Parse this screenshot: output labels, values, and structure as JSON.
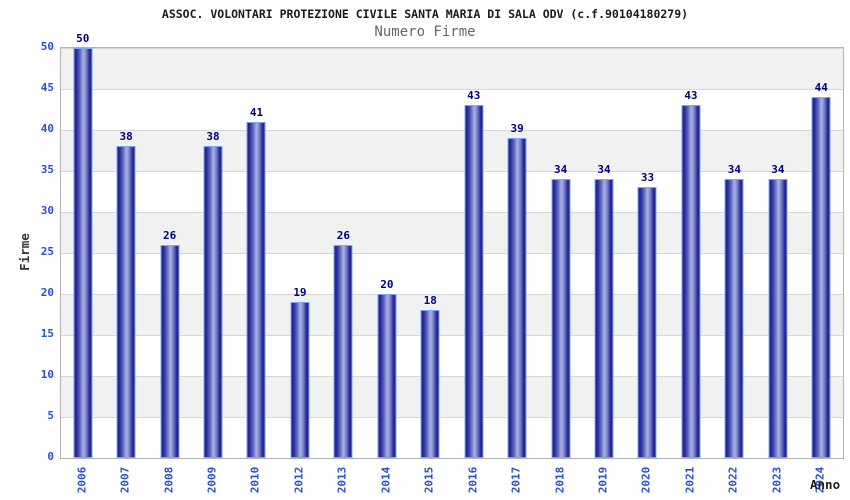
{
  "chart_data": {
    "type": "bar",
    "title": "ASSOC. VOLONTARI PROTEZIONE CIVILE SANTA MARIA DI SALA ODV (c.f.90104180279)",
    "subtitle": "Numero Firme",
    "xlabel": "Anno",
    "ylabel": "Firme",
    "categories": [
      "2006",
      "2007",
      "2008",
      "2009",
      "2010",
      "2012",
      "2013",
      "2014",
      "2015",
      "2016",
      "2017",
      "2018",
      "2019",
      "2020",
      "2021",
      "2022",
      "2023",
      "2024"
    ],
    "values": [
      50,
      38,
      26,
      38,
      41,
      19,
      26,
      20,
      18,
      43,
      39,
      34,
      34,
      33,
      43,
      34,
      34,
      44
    ],
    "ylim": [
      0,
      50
    ],
    "y_ticks": [
      0,
      5,
      10,
      15,
      20,
      25,
      30,
      35,
      40,
      45,
      50
    ],
    "grid": "horizontal gridlines every 5 units with alternating white/gray bands",
    "legend": "none",
    "colors": {
      "bar_edge": "#20208e",
      "bar_center": "#aab3e6",
      "bar_outline": "#79a9f5",
      "tick_label": "#2a4fd0",
      "value_label": "#00007e",
      "band_gray": "#f1f1f1",
      "gridline": "#d6d6d6",
      "title": "#1a1a1a",
      "subtitle": "#666666",
      "axis_title": "#333333"
    }
  }
}
